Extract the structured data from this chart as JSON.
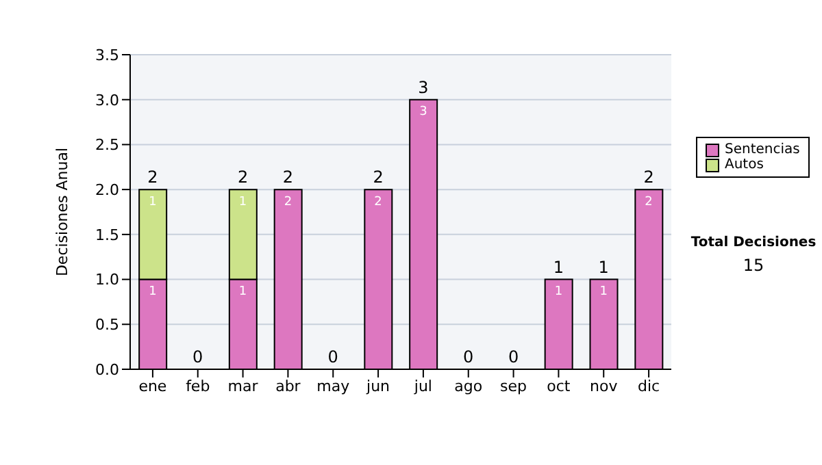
{
  "chart_data": {
    "type": "bar",
    "stacked": true,
    "ylabel": "Decisiones Anual",
    "categories": [
      "ene",
      "feb",
      "mar",
      "abr",
      "may",
      "jun",
      "jul",
      "ago",
      "sep",
      "oct",
      "nov",
      "dic"
    ],
    "series": [
      {
        "name": "Sentencias",
        "color": "#dd77c0",
        "values": [
          1,
          0,
          1,
          2,
          0,
          2,
          3,
          0,
          0,
          1,
          1,
          2
        ],
        "value_labels": [
          "1",
          null,
          "1",
          "2",
          null,
          "2",
          "3",
          null,
          null,
          "1",
          "1",
          "2"
        ]
      },
      {
        "name": "Autos",
        "color": "#cce38a",
        "values": [
          1,
          0,
          1,
          0,
          0,
          0,
          0,
          0,
          0,
          0,
          0,
          0
        ],
        "value_labels": [
          "1",
          null,
          "1",
          null,
          null,
          null,
          null,
          null,
          null,
          null,
          null,
          null
        ]
      }
    ],
    "ylim": [
      0,
      3.5
    ],
    "yticks": [
      {
        "value": 0,
        "label": "0.0"
      },
      {
        "value": 0.5,
        "label": "0.5"
      },
      {
        "value": 1,
        "label": "1.0"
      },
      {
        "value": 1.5,
        "label": "1.5"
      },
      {
        "value": 2,
        "label": "2.0"
      },
      {
        "value": 2.5,
        "label": "2.5"
      },
      {
        "value": 3,
        "label": "3.0"
      },
      {
        "value": 3.5,
        "label": "3.5"
      }
    ],
    "grid": "y",
    "legend": "right",
    "totals": [
      "2",
      "0",
      "2",
      "2",
      "0",
      "2",
      "3",
      "0",
      "0",
      "1",
      "1",
      "2"
    ],
    "annotations": [
      "Total Decisiones",
      "15"
    ]
  }
}
